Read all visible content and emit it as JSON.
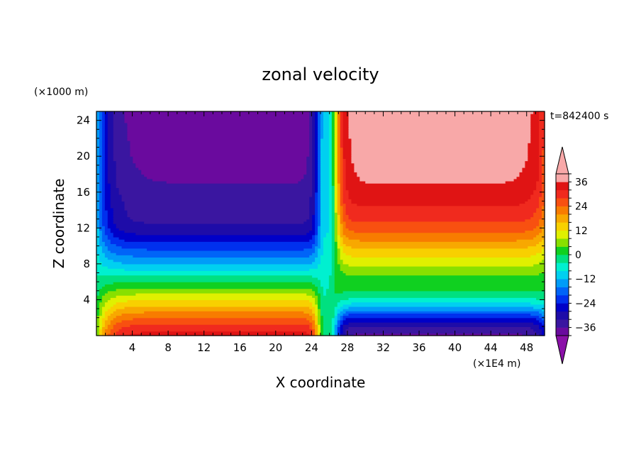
{
  "chart_data": {
    "type": "heatmap",
    "title": "zonal velocity",
    "xlabel": "X coordinate",
    "ylabel": "Z coordinate",
    "x_units_label": "(×1E4 m)",
    "y_units_label": "(×1000 m)",
    "time_label": "t=842400 s",
    "xlim": [
      0,
      50
    ],
    "ylim": [
      0,
      25
    ],
    "x_ticks": [
      4,
      8,
      12,
      16,
      20,
      24,
      28,
      32,
      36,
      40,
      44,
      48
    ],
    "y_ticks": [
      4,
      8,
      12,
      16,
      20,
      24
    ],
    "x_tick_labels": [
      "4",
      "8",
      "12",
      "16",
      "20",
      "24",
      "28",
      "32",
      "36",
      "40",
      "44",
      "48"
    ],
    "y_tick_labels": [
      "4",
      "8",
      "12",
      "16",
      "20",
      "24"
    ],
    "colorbar": {
      "levels": [
        -40,
        -36,
        -32,
        -28,
        -24,
        -20,
        -16,
        -12,
        -8,
        -4,
        0,
        4,
        8,
        12,
        16,
        20,
        24,
        28,
        32,
        36,
        40
      ],
      "tick_values": [
        -36,
        -24,
        -12,
        0,
        12,
        24,
        36
      ],
      "tick_labels": [
        "−36",
        "−24",
        "−12",
        "0",
        "12",
        "24",
        "36"
      ],
      "under_color": "#8a10a8",
      "over_color": "#f8a8a8",
      "colors": [
        "#6a0a9e",
        "#3a16a0",
        "#1e0ca8",
        "#0000c8",
        "#0030ee",
        "#0064f8",
        "#009cf8",
        "#00d0f0",
        "#00f0d0",
        "#00e080",
        "#10d020",
        "#88e000",
        "#e0f000",
        "#f8d000",
        "#f8a800",
        "#f87c00",
        "#f85010",
        "#f02a1e",
        "#e01414",
        "#f8a8a8"
      ]
    },
    "x": [
      0,
      1,
      2,
      3,
      4,
      6,
      8,
      10,
      12,
      14,
      16,
      18,
      20,
      22,
      23,
      24,
      24.6,
      25,
      25.4,
      26,
      26.6,
      27.2,
      28,
      30,
      32,
      34,
      36,
      38,
      40,
      42,
      44,
      46,
      48,
      49.5
    ],
    "z": [
      0.3,
      1,
      2,
      3,
      4,
      5,
      6,
      7,
      8,
      9,
      10,
      11,
      12,
      13,
      14,
      15,
      16,
      17,
      18,
      19,
      20,
      21,
      22,
      23,
      24,
      25
    ],
    "profiles": {
      "west": [
        {
          "z": 0,
          "u": 34
        },
        {
          "z": 1,
          "u": 30
        },
        {
          "z": 2,
          "u": 24
        },
        {
          "z": 3,
          "u": 18
        },
        {
          "z": 4,
          "u": 12
        },
        {
          "z": 5,
          "u": 6
        },
        {
          "z": 6,
          "u": 0
        },
        {
          "z": 7,
          "u": -6
        },
        {
          "z": 8,
          "u": -12
        },
        {
          "z": 9,
          "u": -17
        },
        {
          "z": 10,
          "u": -22
        },
        {
          "z": 11,
          "u": -27
        },
        {
          "z": 12,
          "u": -31
        },
        {
          "z": 13,
          "u": -33
        },
        {
          "z": 15,
          "u": -34
        },
        {
          "z": 17,
          "u": -36
        },
        {
          "z": 20,
          "u": -37
        },
        {
          "z": 25,
          "u": -38
        }
      ],
      "east": [
        {
          "z": 0,
          "u": -37
        },
        {
          "z": 1,
          "u": -33
        },
        {
          "z": 2,
          "u": -25
        },
        {
          "z": 3,
          "u": -14
        },
        {
          "z": 4,
          "u": -5
        },
        {
          "z": 5,
          "u": 0
        },
        {
          "z": 6,
          "u": 2
        },
        {
          "z": 7,
          "u": 5
        },
        {
          "z": 8,
          "u": 9
        },
        {
          "z": 9,
          "u": 13
        },
        {
          "z": 10,
          "u": 17
        },
        {
          "z": 11,
          "u": 22
        },
        {
          "z": 12,
          "u": 26
        },
        {
          "z": 13,
          "u": 29
        },
        {
          "z": 14,
          "u": 31
        },
        {
          "z": 15,
          "u": 33
        },
        {
          "z": 16,
          "u": 34
        },
        {
          "z": 17,
          "u": 36
        },
        {
          "z": 20,
          "u": 37
        },
        {
          "z": 25,
          "u": 38
        }
      ],
      "center_column": {
        "x_range": [
          24.5,
          26.5
        ],
        "u": -6
      }
    }
  }
}
